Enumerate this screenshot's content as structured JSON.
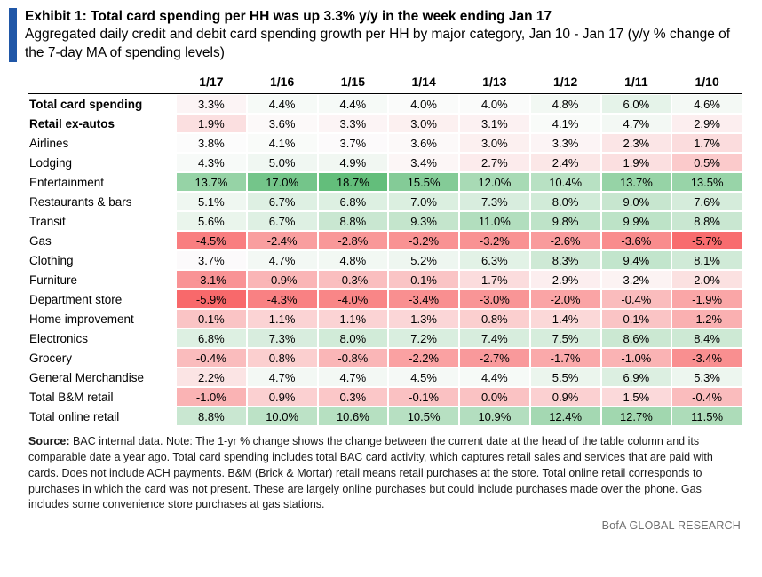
{
  "header": {
    "exhibit_title": "Exhibit 1: Total card spending per HH was up 3.3% y/y in the week ending Jan 17",
    "subtitle": "Aggregated daily credit and debit card spending growth per HH by major category, Jan 10 - Jan 17 (y/y % change of the 7-day MA of spending levels)",
    "accent_color": "#2057A7"
  },
  "chart_data": {
    "type": "heatmap",
    "title": "Total card spending per HH was up 3.3% y/y in the week ending Jan 17",
    "unit": "y/y % change of 7-day MA",
    "columns": [
      "1/17",
      "1/16",
      "1/15",
      "1/14",
      "1/13",
      "1/12",
      "1/11",
      "1/10"
    ],
    "rows": [
      {
        "label": "Total card spending",
        "bold": true,
        "values": [
          3.3,
          4.4,
          4.4,
          4.0,
          4.0,
          4.8,
          6.0,
          4.6
        ]
      },
      {
        "label": "Retail ex-autos",
        "bold": true,
        "values": [
          1.9,
          3.6,
          3.3,
          3.0,
          3.1,
          4.1,
          4.7,
          2.9
        ]
      },
      {
        "label": "Airlines",
        "bold": false,
        "values": [
          3.8,
          4.1,
          3.7,
          3.6,
          3.0,
          3.3,
          2.3,
          1.7
        ]
      },
      {
        "label": "Lodging",
        "bold": false,
        "values": [
          4.3,
          5.0,
          4.9,
          3.4,
          2.7,
          2.4,
          1.9,
          0.5
        ]
      },
      {
        "label": "Entertainment",
        "bold": false,
        "values": [
          13.7,
          17.0,
          18.7,
          15.5,
          12.0,
          10.4,
          13.7,
          13.5
        ]
      },
      {
        "label": "Restaurants & bars",
        "bold": false,
        "values": [
          5.1,
          6.7,
          6.8,
          7.0,
          7.3,
          8.0,
          9.0,
          7.6
        ]
      },
      {
        "label": "Transit",
        "bold": false,
        "values": [
          5.6,
          6.7,
          8.8,
          9.3,
          11.0,
          9.8,
          9.9,
          8.8
        ]
      },
      {
        "label": "Gas",
        "bold": false,
        "values": [
          -4.5,
          -2.4,
          -2.8,
          -3.2,
          -3.2,
          -2.6,
          -3.6,
          -5.7
        ]
      },
      {
        "label": "Clothing",
        "bold": false,
        "values": [
          3.7,
          4.7,
          4.8,
          5.2,
          6.3,
          8.3,
          9.4,
          8.1
        ]
      },
      {
        "label": "Furniture",
        "bold": false,
        "values": [
          -3.1,
          -0.9,
          -0.3,
          0.1,
          1.7,
          2.9,
          3.2,
          2.0
        ]
      },
      {
        "label": "Department store",
        "bold": false,
        "values": [
          -5.9,
          -4.3,
          -4.0,
          -3.4,
          -3.0,
          -2.0,
          -0.4,
          -1.9
        ]
      },
      {
        "label": "Home improvement",
        "bold": false,
        "values": [
          0.1,
          1.1,
          1.1,
          1.3,
          0.8,
          1.4,
          0.1,
          -1.2
        ]
      },
      {
        "label": "Electronics",
        "bold": false,
        "values": [
          6.8,
          7.3,
          8.0,
          7.2,
          7.4,
          7.5,
          8.6,
          8.4
        ]
      },
      {
        "label": "Grocery",
        "bold": false,
        "values": [
          -0.4,
          0.8,
          -0.8,
          -2.2,
          -2.7,
          -1.7,
          -1.0,
          -3.4
        ]
      },
      {
        "label": "General Merchandise",
        "bold": false,
        "values": [
          2.2,
          4.7,
          4.7,
          4.5,
          4.4,
          5.5,
          6.9,
          5.3
        ]
      },
      {
        "label": "Total B&M retail",
        "bold": false,
        "values": [
          -1.0,
          0.9,
          0.3,
          -0.1,
          0.0,
          0.9,
          1.5,
          -0.4
        ]
      },
      {
        "label": "Total online retail",
        "bold": false,
        "values": [
          8.8,
          10.0,
          10.6,
          10.5,
          10.9,
          12.4,
          12.7,
          11.5
        ]
      }
    ],
    "value_suffix": "%",
    "color_scale": {
      "min": -5.9,
      "mid": 3.8,
      "max": 18.7,
      "min_color": "#F8696B",
      "mid_color": "#FCFCFC",
      "max_color": "#63BE7B"
    }
  },
  "footer": {
    "source_bold": "Source:",
    "source_text": " BAC internal data. Note: The 1-yr % change shows the change between the current date at the head of the table column and its comparable date a year ago. Total card spending includes total BAC card activity, which captures retail sales and services that are paid with cards. Does not include ACH payments. B&M (Brick & Mortar) retail means retail purchases at the store. Total online retail corresponds to purchases in which the card was not present. These are largely online purchases but could include purchases made over the phone. Gas includes some convenience store purchases at gas stations.",
    "brand": "BofA GLOBAL RESEARCH"
  }
}
